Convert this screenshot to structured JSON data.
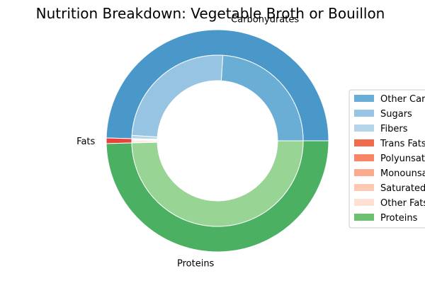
{
  "chart_data": {
    "type": "pie",
    "title": "Nutrition Breakdown:  Vegetable Broth or Bouillon",
    "outer_ring": [
      {
        "label": "Carbohydrates",
        "value": 49.6,
        "color": "#4a98c9"
      },
      {
        "label": "Fats",
        "value": 0.8,
        "color": "#e6443a"
      },
      {
        "label": "Proteins",
        "value": 49.6,
        "color": "#4bb062"
      }
    ],
    "inner_ring": [
      {
        "label": "Other Carbs",
        "value": 24.0,
        "color": "#6aaed6"
      },
      {
        "label": "Sugars",
        "value": 25.0,
        "color": "#96c4e2"
      },
      {
        "label": "Fibers",
        "value": 0.6,
        "color": "#b6d4ea"
      },
      {
        "label": "Trans Fats",
        "value": 0.05,
        "color": "#f06b4c"
      },
      {
        "label": "Polyunsaturated Fats",
        "value": 0.1,
        "color": "#f88566"
      },
      {
        "label": "Monounsaturated Fats",
        "value": 0.15,
        "color": "#fcaa8d"
      },
      {
        "label": "Saturated Fats",
        "value": 0.25,
        "color": "#fdc9b3"
      },
      {
        "label": "Other Fats",
        "value": 0.25,
        "color": "#fee1d3"
      },
      {
        "label": "Proteins",
        "value": 49.6,
        "color": "#98d493"
      }
    ],
    "legend": {
      "placement": "right",
      "entries": [
        {
          "label": "Other Carbs",
          "color": "#6aaed6"
        },
        {
          "label": "Sugars",
          "color": "#96c4e2"
        },
        {
          "label": "Fibers",
          "color": "#b6d4ea"
        },
        {
          "label": "Trans Fats",
          "color": "#f06b4c"
        },
        {
          "label": "Polyunsaturated Fats",
          "color": "#f88566"
        },
        {
          "label": "Monounsaturated Fats",
          "color": "#fcaa8d"
        },
        {
          "label": "Saturated Fats",
          "color": "#fdc9b3"
        },
        {
          "label": "Other Fats",
          "color": "#fee1d3"
        },
        {
          "label": "Proteins",
          "color": "#6cc072"
        }
      ]
    }
  }
}
